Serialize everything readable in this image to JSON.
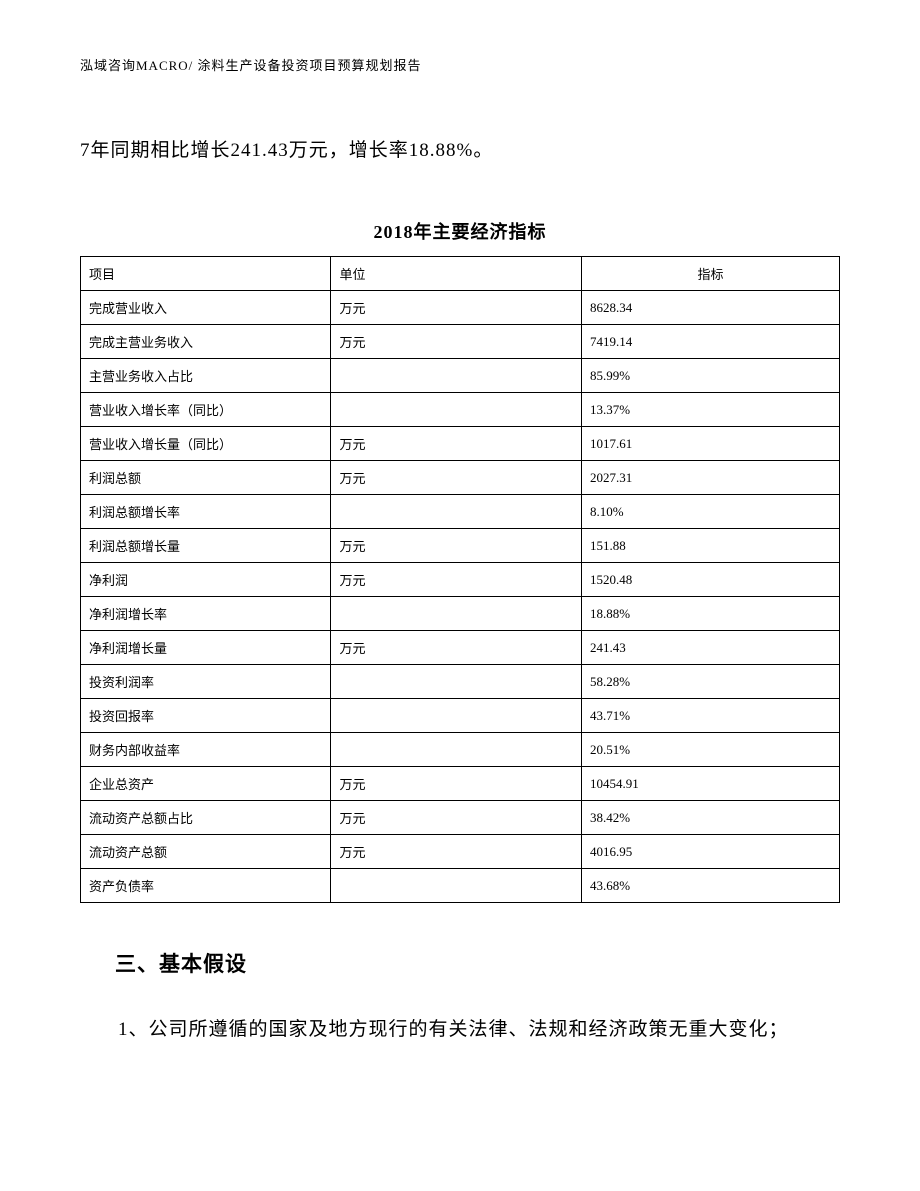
{
  "header": "泓域咨询MACRO/    涂料生产设备投资项目预算规划报告",
  "intro_text": "7年同期相比增长241.43万元，增长率18.88%。",
  "table": {
    "title": "2018年主要经济指标",
    "columns": [
      "项目",
      "单位",
      "指标"
    ],
    "rows": [
      [
        "完成营业收入",
        "万元",
        "8628.34"
      ],
      [
        "完成主营业务收入",
        "万元",
        "7419.14"
      ],
      [
        "主营业务收入占比",
        "",
        "85.99%"
      ],
      [
        "营业收入增长率（同比）",
        "",
        "13.37%"
      ],
      [
        "营业收入增长量（同比）",
        "万元",
        "1017.61"
      ],
      [
        "利润总额",
        "万元",
        "2027.31"
      ],
      [
        "利润总额增长率",
        "",
        "8.10%"
      ],
      [
        "利润总额增长量",
        "万元",
        "151.88"
      ],
      [
        "净利润",
        "万元",
        "1520.48"
      ],
      [
        "净利润增长率",
        "",
        "18.88%"
      ],
      [
        "净利润增长量",
        "万元",
        "241.43"
      ],
      [
        "投资利润率",
        "",
        "58.28%"
      ],
      [
        "投资回报率",
        "",
        "43.71%"
      ],
      [
        "财务内部收益率",
        "",
        "20.51%"
      ],
      [
        "企业总资产",
        "万元",
        "10454.91"
      ],
      [
        "流动资产总额占比",
        "万元",
        "38.42%"
      ],
      [
        "流动资产总额",
        "万元",
        "4016.95"
      ],
      [
        "资产负债率",
        "",
        "43.68%"
      ]
    ]
  },
  "section_heading": "三、基本假设",
  "body_paragraph": "1、公司所遵循的国家及地方现行的有关法律、法规和经济政策无重大变化；"
}
